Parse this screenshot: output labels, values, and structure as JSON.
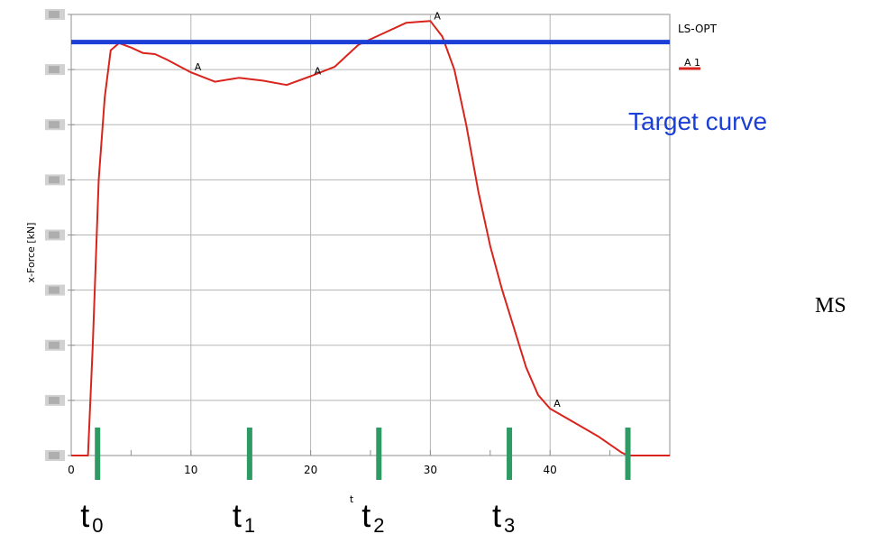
{
  "chart_data": {
    "type": "line",
    "source_label": "LS-OPT",
    "ylabel": "x-Force [kN]",
    "xlabel": "t",
    "xlim": [
      0,
      50
    ],
    "ylim": [
      0,
      8
    ],
    "x_ticks": [
      0,
      10,
      20,
      30,
      40
    ],
    "y_tick_count": 9,
    "grid": true,
    "legend_position": "top-right",
    "series": [
      {
        "name": "A 1",
        "marker_label": "A",
        "color": "#d8241c",
        "x": [
          0,
          1.4,
          1.8,
          2.3,
          2.8,
          3.3,
          4.0,
          5.0,
          6.0,
          7.0,
          8.0,
          10.0,
          12.0,
          14.0,
          16.0,
          18.0,
          20.0,
          22.0,
          24.0,
          26.0,
          28.0,
          30.0,
          31.0,
          32.0,
          33.0,
          34.0,
          35.0,
          36.0,
          37.0,
          38.0,
          39.0,
          40.0,
          42.0,
          44.0,
          46.0,
          46.5,
          50.0
        ],
        "y": [
          0,
          0,
          2.0,
          5.0,
          6.5,
          7.35,
          7.48,
          7.4,
          7.3,
          7.28,
          7.18,
          6.95,
          6.78,
          6.85,
          6.8,
          6.72,
          6.88,
          7.05,
          7.45,
          7.65,
          7.85,
          7.88,
          7.6,
          7.0,
          6.0,
          4.8,
          3.8,
          3.0,
          2.3,
          1.6,
          1.1,
          0.85,
          0.6,
          0.35,
          0.05,
          0,
          0
        ],
        "markers_x": [
          10,
          20,
          30,
          40
        ],
        "markers_y": [
          6.95,
          6.88,
          7.88,
          0.85
        ]
      },
      {
        "name": "Target curve",
        "color": "#1b3fd6",
        "x": [
          0,
          50
        ],
        "y": [
          7.5,
          7.5
        ]
      }
    ],
    "time_markers": [
      {
        "x": 2.2,
        "label": "t",
        "sub": "0"
      },
      {
        "x": 14.9,
        "label": "t",
        "sub": "1"
      },
      {
        "x": 25.7,
        "label": "t",
        "sub": "2"
      },
      {
        "x": 36.6,
        "label": "t",
        "sub": "3"
      },
      {
        "x": 46.5
      }
    ],
    "time_marker_color": "#2f9a63",
    "annotations": {
      "target_label": "Target curve",
      "side_label": "MS"
    }
  }
}
